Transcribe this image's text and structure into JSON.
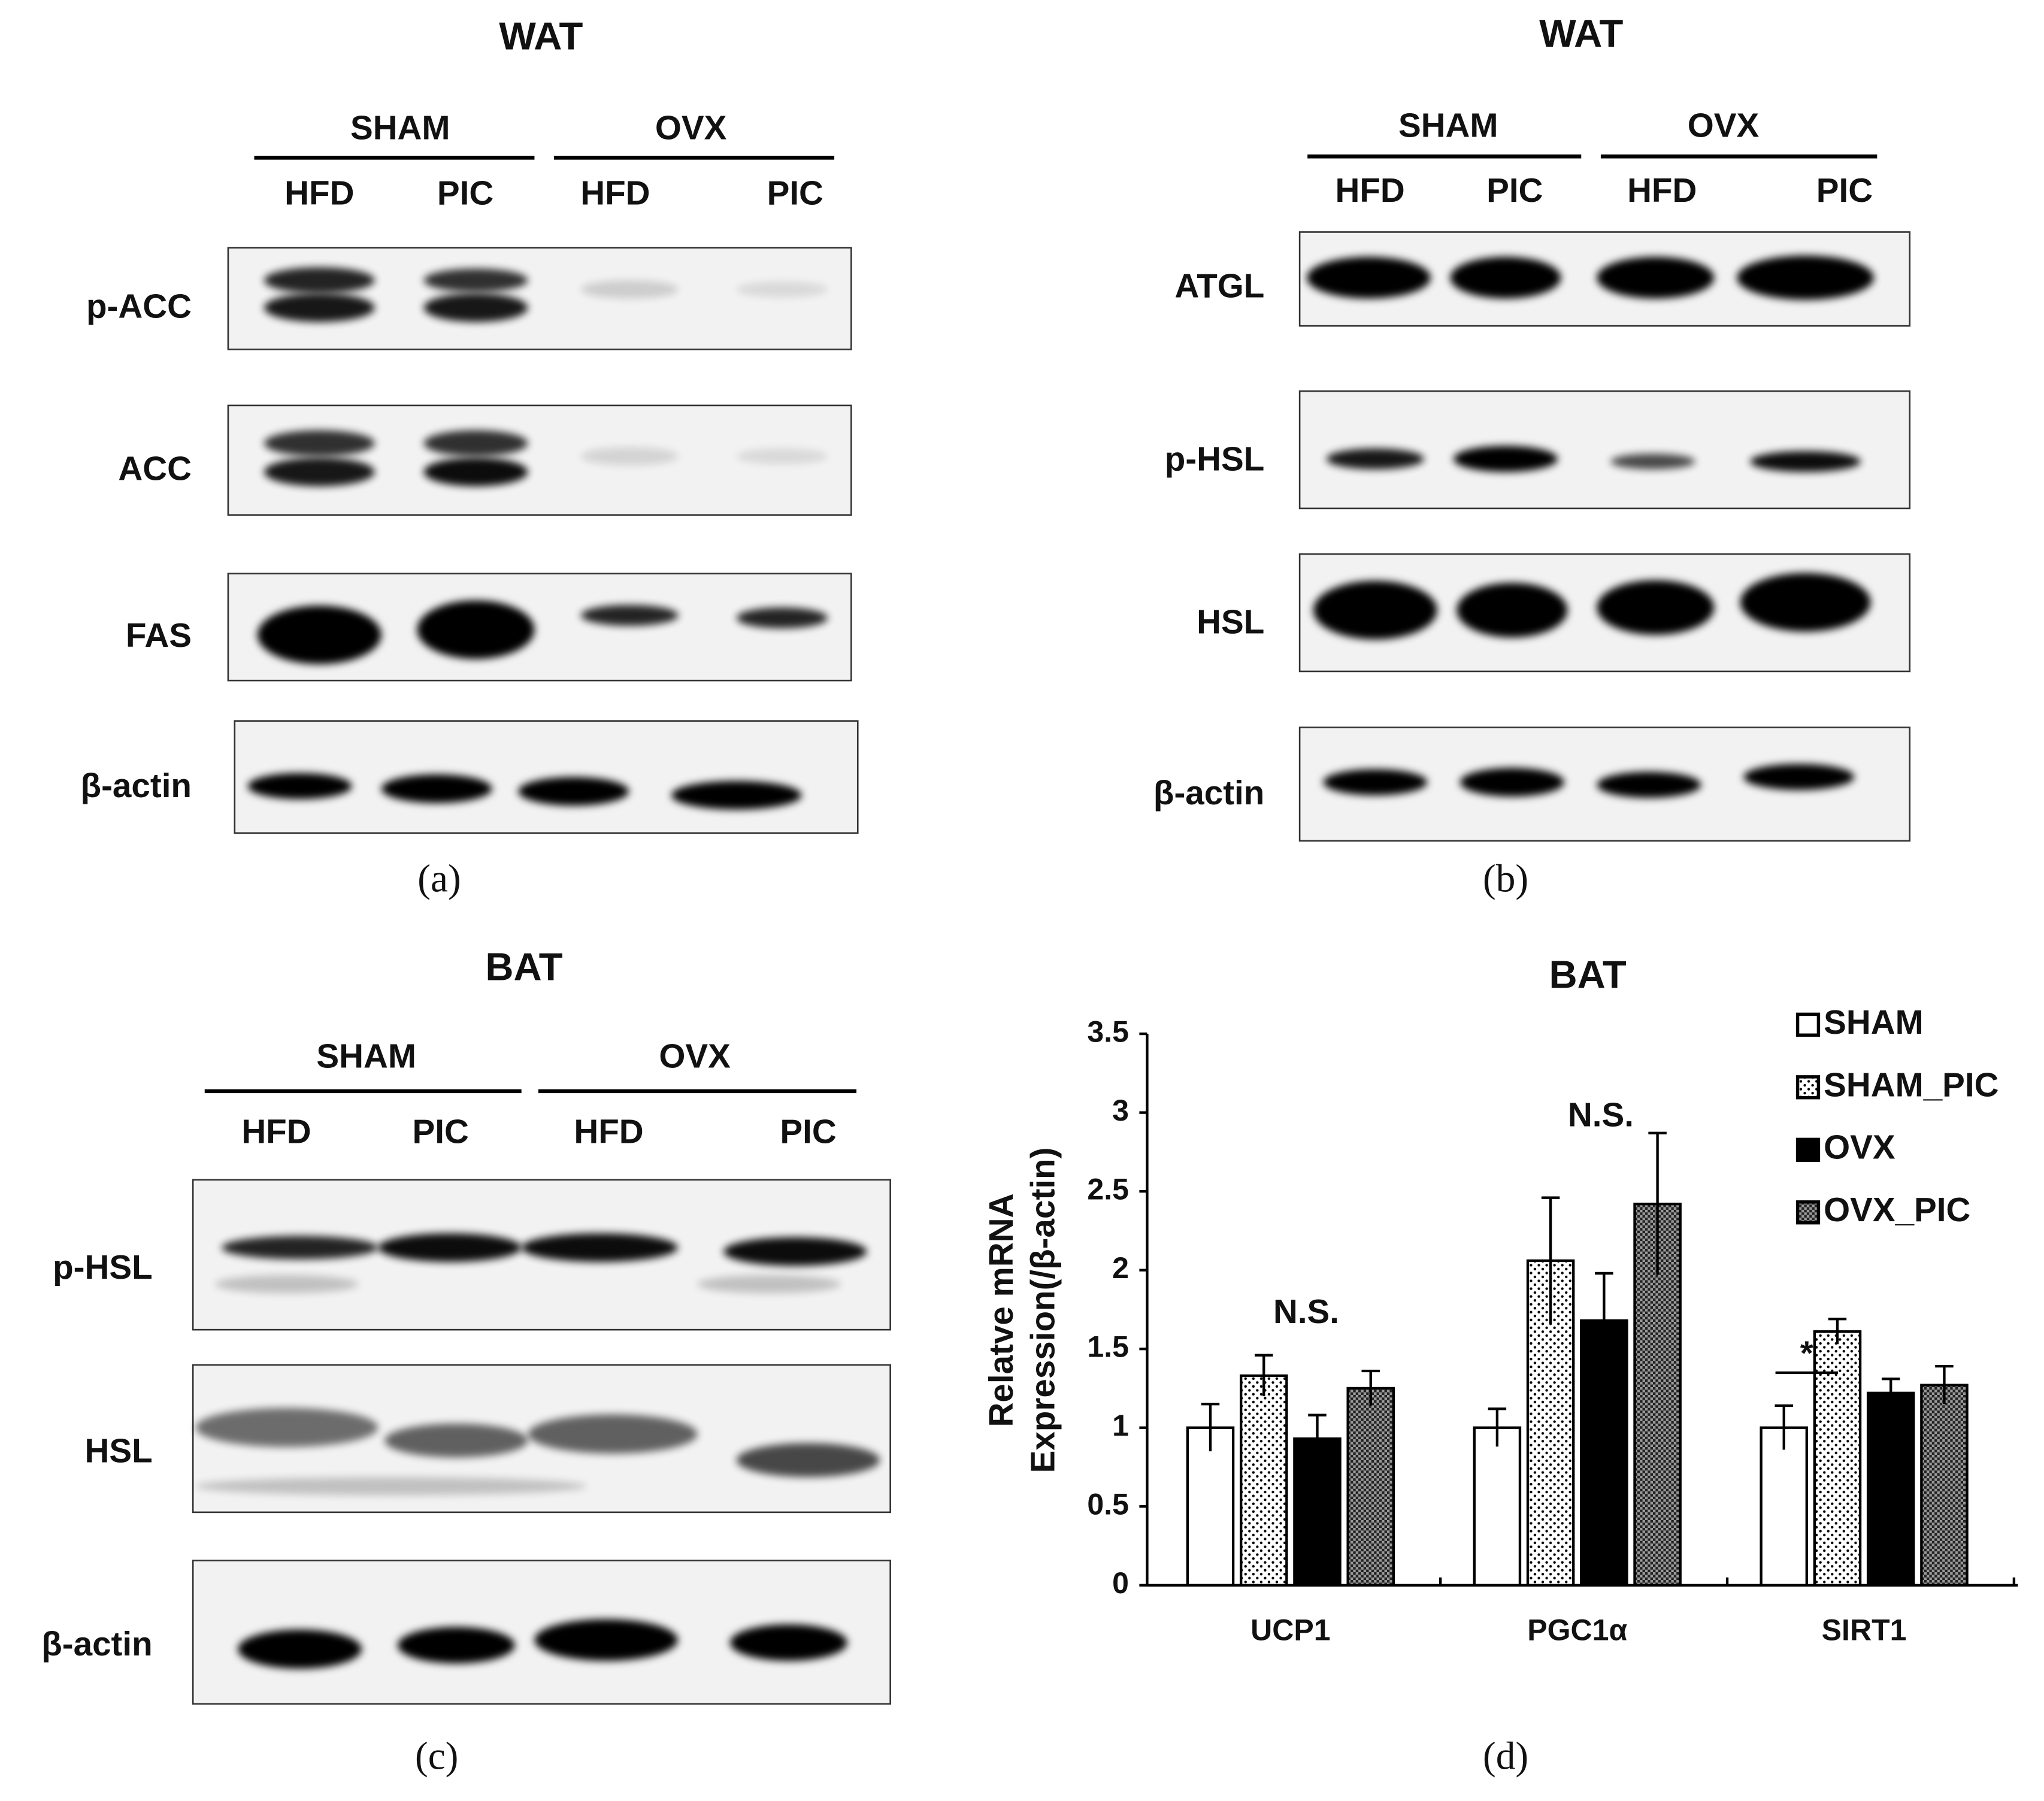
{
  "panels": [
    {
      "title": "WAT",
      "groups": [
        "SHAM",
        "OVX"
      ],
      "lanes": [
        "HFD",
        "PIC",
        "HFD",
        "PIC"
      ],
      "rows": [
        "p-ACC",
        "ACC",
        "FAS",
        "β-actin"
      ],
      "caption": "(a)"
    },
    {
      "title": "WAT",
      "groups": [
        "SHAM",
        "OVX"
      ],
      "lanes": [
        "HFD",
        "PIC",
        "HFD",
        "PIC"
      ],
      "rows": [
        "ATGL",
        "p-HSL",
        "HSL",
        "β-actin"
      ],
      "caption": "(b)"
    },
    {
      "title": "BAT",
      "groups": [
        "SHAM",
        "OVX"
      ],
      "lanes": [
        "HFD",
        "PIC",
        "HFD",
        "PIC"
      ],
      "rows": [
        "p-HSL",
        "HSL",
        "β-actin"
      ],
      "caption": "(c)"
    }
  ],
  "chart_data": {
    "type": "bar",
    "title": "BAT",
    "caption": "(d)",
    "y_label": [
      "Relatve mRNA",
      "Expression(/β-actin)"
    ],
    "categories": [
      "UCP1",
      "PGC1α",
      "SIRT1"
    ],
    "series": [
      {
        "name": "SHAM",
        "color": "#ffffff",
        "values": [
          1,
          1,
          1
        ],
        "errors": [
          0.15,
          0.12,
          0.14
        ]
      },
      {
        "name": "SHAM_PIC",
        "color": "#ffffff",
        "values": [
          1.33,
          2.06,
          1.61
        ],
        "errors": [
          0.13,
          0.4,
          0.08
        ]
      },
      {
        "name": "OVX",
        "color": "#000000",
        "values": [
          0.93,
          1.68,
          1.22
        ],
        "errors": [
          0.15,
          0.3,
          0.09
        ]
      },
      {
        "name": "OVX_PIC",
        "color": "#808080",
        "values": [
          1.25,
          2.42,
          1.27
        ],
        "errors": [
          0.11,
          0.45,
          0.12
        ]
      }
    ],
    "annotations": [
      "N.S.",
      "N.S.",
      "*"
    ],
    "ylim": [
      0,
      3.5
    ],
    "yticks": [
      0,
      0.5,
      1,
      1.5,
      2,
      2.5,
      3,
      3.5
    ],
    "grid": false
  }
}
